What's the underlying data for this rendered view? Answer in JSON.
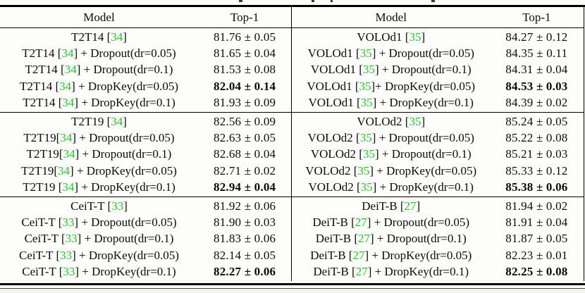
{
  "table": {
    "citation_color": "#22cc22",
    "headers": {
      "model": "Model",
      "top1": "Top-1"
    },
    "groups": [
      {
        "left": [
          {
            "pre": "T2T14 [",
            "cite": "34",
            "post": "]",
            "value": "81.76 ± 0.05",
            "bold": false
          },
          {
            "pre": "T2T14 [",
            "cite": "34",
            "post": "] + Dropout(dr=0.05)",
            "value": "81.65 ± 0.04",
            "bold": false
          },
          {
            "pre": "T2T14 [",
            "cite": "34",
            "post": "] + Dropout(dr=0.1)",
            "value": "81.53 ± 0.08",
            "bold": false
          },
          {
            "pre": "T2T14 [",
            "cite": "34",
            "post": "] + DropKey(dr=0.05)",
            "value": "82.04 ± 0.14",
            "bold": true
          },
          {
            "pre": "T2T14 [",
            "cite": "34",
            "post": "] + DropKey(dr=0.1)",
            "value": "81.93 ± 0.09",
            "bold": false
          }
        ],
        "right": [
          {
            "pre": "VOLOd1 [",
            "cite": "35",
            "post": "]",
            "value": "84.27 ± 0.12",
            "bold": false
          },
          {
            "pre": "VOLOd1 [",
            "cite": "35",
            "post": "] + Dropout(dr=0.05)",
            "value": "84.35 ± 0.11",
            "bold": false
          },
          {
            "pre": "VOLOd1 [",
            "cite": "35",
            "post": "] + Dropout(dr=0.1)",
            "value": "84.31 ± 0.04",
            "bold": false
          },
          {
            "pre": "VOLOd1 [",
            "cite": "35",
            "post": "]+ DropKey(dr=0.05)",
            "value": "84.53 ± 0.03",
            "bold": true
          },
          {
            "pre": "VOLOd1 [",
            "cite": "35",
            "post": "] + DropKey(dr=0.1)",
            "value": "84.39 ± 0.02",
            "bold": false
          }
        ]
      },
      {
        "left": [
          {
            "pre": "T2T19 [",
            "cite": "34",
            "post": "]",
            "value": "82.56 ± 0.09",
            "bold": false
          },
          {
            "pre": "T2T19[",
            "cite": "34",
            "post": "] + Dropout(dr=0.05)",
            "value": "82.63 ± 0.05",
            "bold": false
          },
          {
            "pre": "T2T19[",
            "cite": "34",
            "post": "] + Dropout(dr=0.1)",
            "value": "82.68 ± 0.04",
            "bold": false
          },
          {
            "pre": "T2T19[",
            "cite": "34",
            "post": "] + DropKey(dr=0.05)",
            "value": "82.71 ± 0.02",
            "bold": false
          },
          {
            "pre": "T2T19 [",
            "cite": "34",
            "post": "] + DropKey(dr=0.1)",
            "value": "82.94 ± 0.04",
            "bold": true
          }
        ],
        "right": [
          {
            "pre": "VOLOd2 [",
            "cite": "35",
            "post": "]",
            "value": "85.24 ± 0.05",
            "bold": false
          },
          {
            "pre": "VOLOd2 [",
            "cite": "35",
            "post": "] + Dropout(dr=0.05)",
            "value": "85.22 ± 0.08",
            "bold": false
          },
          {
            "pre": "VOLOd2 [",
            "cite": "35",
            "post": "] + Dropout(dr=0.1)",
            "value": "85.21 ± 0.03",
            "bold": false
          },
          {
            "pre": "VOLOd2 [",
            "cite": "35",
            "post": "] + DropKey(dr=0.05)",
            "value": "85.33 ± 0.12",
            "bold": false
          },
          {
            "pre": "VOLOd2 [",
            "cite": "35",
            "post": "] + DropKey(dr=0.1)",
            "value": "85.38 ± 0.06",
            "bold": true
          }
        ]
      },
      {
        "left": [
          {
            "pre": "CeiT-T [",
            "cite": "33",
            "post": "]",
            "value": "81.92 ± 0.06",
            "bold": false
          },
          {
            "pre": "CeiT-T [",
            "cite": "33",
            "post": "] + Dropout(dr=0.05)",
            "value": "81.90 ± 0.03",
            "bold": false
          },
          {
            "pre": "CeiT-T [",
            "cite": "33",
            "post": "] + Dropout(dr=0.1)",
            "value": "81.83 ± 0.06",
            "bold": false
          },
          {
            "pre": "CeiT-T [",
            "cite": "33",
            "post": "] + DropKey(dr=0.05)",
            "value": "82.14 ± 0.05",
            "bold": false
          },
          {
            "pre": "CeiT-T [",
            "cite": "33",
            "post": "] + DropKey(dr=0.1)",
            "value": "82.27 ± 0.06",
            "bold": true
          }
        ],
        "right": [
          {
            "pre": "DeiT-B [",
            "cite": "27",
            "post": "]",
            "value": "81.94 ± 0.02",
            "bold": false
          },
          {
            "pre": "DeiT-B [",
            "cite": "27",
            "post": "] + Dropout(dr=0.05)",
            "value": "81.91 ± 0.04",
            "bold": false
          },
          {
            "pre": "DeiT-B [",
            "cite": "27",
            "post": "] + Dropout(dr=0.1)",
            "value": "81.87 ± 0.05",
            "bold": false
          },
          {
            "pre": "DeiT-B [",
            "cite": "27",
            "post": "] + DropKey(dr=0.05)",
            "value": "82.23 ± 0.01",
            "bold": false
          },
          {
            "pre": "DeiT-B [",
            "cite": "27",
            "post": "] + DropKey(dr=0.1)",
            "value": "82.25 ± 0.08",
            "bold": true
          }
        ]
      }
    ]
  }
}
